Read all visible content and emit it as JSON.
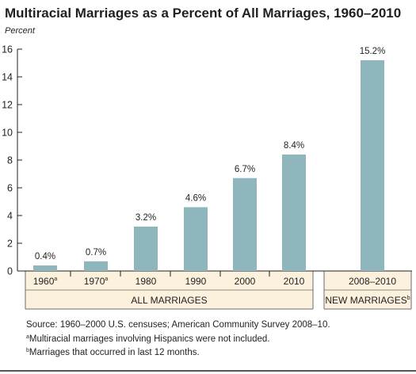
{
  "colors": {
    "bar": "#8fb6bd",
    "band": "#fbf1dc",
    "band_stroke": "#6b6b6b",
    "axis": "#231f20",
    "rule": "#231f20"
  },
  "chart_data": {
    "type": "bar",
    "title": "Multiracial Marriages as a Percent of All Marriages, 1960–2010",
    "ylabel": "Percent",
    "xlabel": "",
    "ylim": [
      0,
      16
    ],
    "yticks": [
      0,
      2,
      4,
      6,
      8,
      10,
      12,
      14,
      16
    ],
    "grid": false,
    "legend": "none",
    "categories": [
      {
        "label": "1960",
        "note": "a"
      },
      {
        "label": "1970",
        "note": "a"
      },
      {
        "label": "1980",
        "note": ""
      },
      {
        "label": "1990",
        "note": ""
      },
      {
        "label": "2000",
        "note": ""
      },
      {
        "label": "2010",
        "note": ""
      },
      {
        "label": "2008–2010",
        "note": ""
      }
    ],
    "values": [
      0.4,
      0.7,
      3.2,
      4.6,
      6.7,
      8.4,
      15.2
    ],
    "value_labels": [
      "0.4%",
      "0.7%",
      "3.2%",
      "4.6%",
      "6.7%",
      "8.4%",
      "15.2%"
    ],
    "groups": [
      {
        "label": "ALL MARRIAGES",
        "note": "",
        "categories": [
          0,
          5
        ]
      },
      {
        "label": "NEW MARRIAGES",
        "note": "b",
        "categories": [
          6,
          6
        ]
      }
    ]
  },
  "footnotes": {
    "source": "Source: 1960–2000 U.S. censuses; American Community Survey 2008–10.",
    "a": {
      "marker": "a",
      "text": "Multiracial marriages involving Hispanics were not included."
    },
    "b": {
      "marker": "b",
      "text": "Marriages that occurred in last 12 months."
    }
  }
}
